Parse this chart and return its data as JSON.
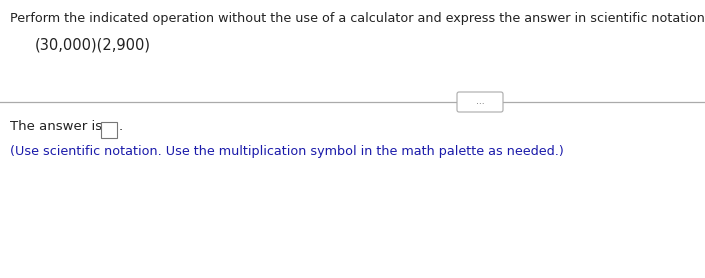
{
  "line1": "Perform the indicated operation without the use of a calculator and express the answer in scientific notation.",
  "line2": "(30,000)(2,900)",
  "answer_label": "The answer is",
  "answer_note": "(Use scientific notation. Use the multiplication symbol in the math palette as needed.)",
  "text_color_dark": "#1a1aaa",
  "text_color_line1": "#222222",
  "background_color": "#ffffff",
  "divider_color": "#aaaaaa",
  "dots_text": "...",
  "figwidth": 7.05,
  "figheight": 2.78
}
